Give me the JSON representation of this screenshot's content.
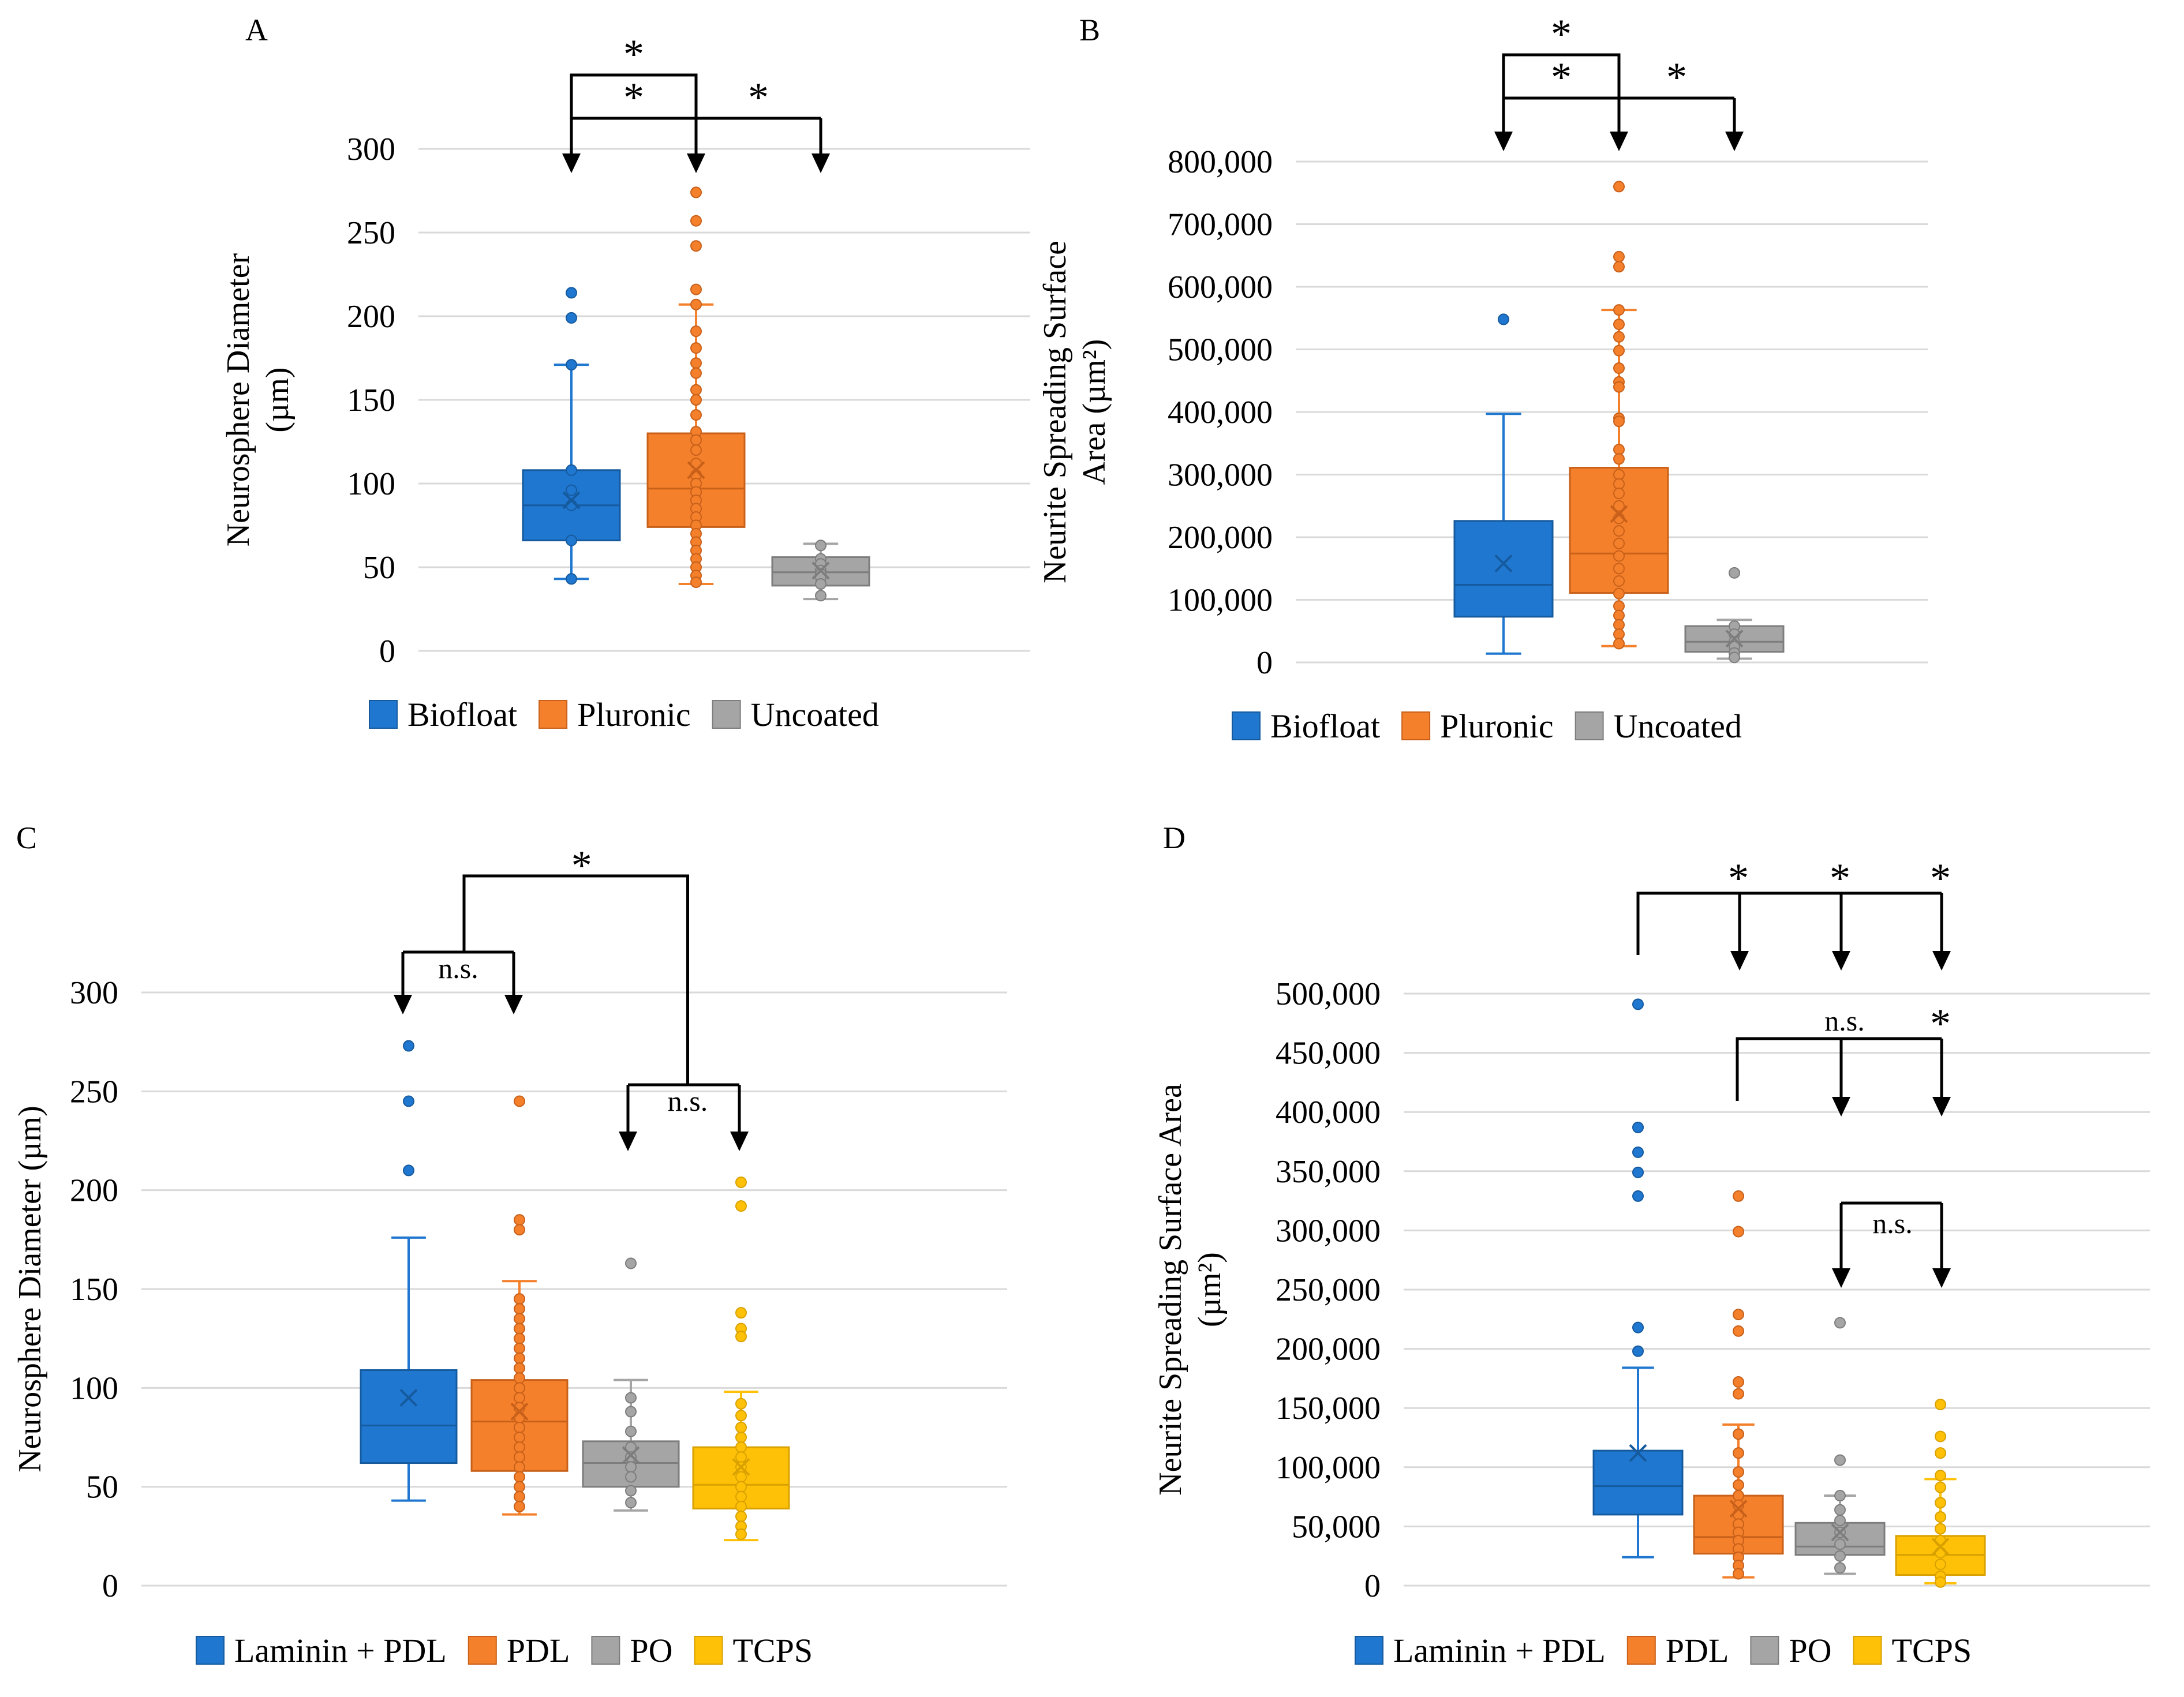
{
  "colors": {
    "blue": "#1f77d0",
    "blue_dark": "#165a9e",
    "orange": "#f4802b",
    "orange_dark": "#c8601a",
    "gray": "#a5a5a5",
    "gray_dark": "#7d7d7d",
    "yellow": "#fec107",
    "yellow_dark": "#d9a100",
    "grid": "#d9d9d9"
  },
  "chart_data": [
    {
      "id": "A",
      "panel_label": "A",
      "type": "box",
      "ylabel": [
        "Neurosphere Diameter",
        "(µm)"
      ],
      "ylim": [
        0,
        300
      ],
      "yticks": [
        0,
        50,
        100,
        150,
        200,
        250,
        300
      ],
      "ytick_labels": [
        "0",
        "50",
        "100",
        "150",
        "200",
        "250",
        "300"
      ],
      "series": [
        {
          "name": "Biofloat",
          "color": "blue",
          "whisker_low": 43,
          "q1": 66,
          "median": 87,
          "q3": 108,
          "whisker_high": 171,
          "mean": 90,
          "points": [
            214,
            199,
            171,
            108,
            96,
            87,
            66,
            43
          ]
        },
        {
          "name": "Pluronic",
          "color": "orange",
          "whisker_low": 40,
          "q1": 74,
          "median": 97,
          "q3": 130,
          "whisker_high": 207,
          "mean": 108,
          "points": [
            274,
            257,
            242,
            216,
            207,
            191,
            181,
            172,
            166,
            156,
            150,
            141,
            131,
            126,
            120,
            112,
            105,
            100,
            95,
            90,
            85,
            80,
            75,
            70,
            65,
            60,
            55,
            50,
            45,
            41
          ]
        },
        {
          "name": "Uncoated",
          "color": "gray",
          "whisker_low": 31,
          "q1": 39,
          "median": 47,
          "q3": 56,
          "whisker_high": 64,
          "mean": 48,
          "points": [
            63,
            55,
            52,
            48,
            46,
            44,
            40,
            33
          ]
        }
      ],
      "legend": [
        "Biofloat",
        "Pluronic",
        "Uncoated"
      ],
      "annotations": [
        {
          "from": 0,
          "to": 1,
          "label": "*",
          "level": 2,
          "kind": "ab"
        },
        {
          "from": 0,
          "to": 1,
          "label": "*",
          "level": 1,
          "kind": "ab"
        },
        {
          "from": 1,
          "to": 2,
          "label": "*",
          "level": 1,
          "kind": "ab"
        }
      ]
    },
    {
      "id": "B",
      "panel_label": "B",
      "type": "box",
      "ylabel": [
        "Neurite Spreading Surface",
        "Area (µm²)"
      ],
      "ylim": [
        0,
        800000
      ],
      "yticks": [
        0,
        100000,
        200000,
        300000,
        400000,
        500000,
        600000,
        700000,
        800000
      ],
      "ytick_labels": [
        "0",
        "100,000",
        "200,000",
        "300,000",
        "400,000",
        "500,000",
        "600,000",
        "700,000",
        "800,000"
      ],
      "series": [
        {
          "name": "Biofloat",
          "color": "blue",
          "whisker_low": 14000,
          "q1": 73000,
          "median": 124000,
          "q3": 226000,
          "whisker_high": 397000,
          "mean": 158000,
          "points": [
            548000
          ]
        },
        {
          "name": "Pluronic",
          "color": "orange",
          "whisker_low": 26000,
          "q1": 111000,
          "median": 174000,
          "q3": 311000,
          "whisker_high": 563000,
          "mean": 237000,
          "points": [
            760000,
            648000,
            632000,
            563000,
            540000,
            520000,
            498000,
            470000,
            448000,
            440000,
            390000,
            385000,
            340000,
            325000,
            300000,
            285000,
            270000,
            250000,
            230000,
            210000,
            190000,
            170000,
            150000,
            130000,
            110000,
            90000,
            75000,
            60000,
            45000,
            30000
          ]
        },
        {
          "name": "Uncoated",
          "color": "gray",
          "whisker_low": 6000,
          "q1": 17000,
          "median": 33000,
          "q3": 58000,
          "whisker_high": 68000,
          "mean": 38000,
          "points": [
            143000,
            58000,
            45000,
            33000,
            25000,
            15000,
            8000
          ]
        }
      ],
      "legend": [
        "Biofloat",
        "Pluronic",
        "Uncoated"
      ],
      "annotations": [
        {
          "from": 0,
          "to": 1,
          "label": "*",
          "level": 2,
          "kind": "ab"
        },
        {
          "from": 0,
          "to": 1,
          "label": "*",
          "level": 1,
          "kind": "ab"
        },
        {
          "from": 1,
          "to": 2,
          "label": "*",
          "level": 1,
          "kind": "ab"
        }
      ]
    },
    {
      "id": "C",
      "panel_label": "C",
      "type": "box",
      "ylabel": [
        "Neurosphere Diameter (µm)"
      ],
      "ylim": [
        0,
        300
      ],
      "yticks": [
        0,
        50,
        100,
        150,
        200,
        250,
        300
      ],
      "ytick_labels": [
        "0",
        "50",
        "100",
        "150",
        "200",
        "250",
        "300"
      ],
      "series": [
        {
          "name": "Laminin + PDL",
          "color": "blue",
          "whisker_low": 43,
          "q1": 62,
          "median": 81,
          "q3": 109,
          "whisker_high": 176,
          "mean": 95,
          "points": [
            273,
            245,
            210
          ]
        },
        {
          "name": "PDL",
          "color": "orange",
          "whisker_low": 36,
          "q1": 58,
          "median": 83,
          "q3": 104,
          "whisker_high": 154,
          "mean": 88,
          "points": [
            245,
            185,
            180,
            145,
            140,
            135,
            130,
            125,
            120,
            115,
            110,
            105,
            100,
            95,
            90,
            85,
            80,
            75,
            70,
            65,
            60,
            55,
            50,
            45,
            40
          ]
        },
        {
          "name": "PO",
          "color": "gray",
          "whisker_low": 38,
          "q1": 50,
          "median": 62,
          "q3": 73,
          "whisker_high": 104,
          "mean": 66,
          "points": [
            163,
            95,
            88,
            78,
            70,
            65,
            60,
            55,
            48,
            42
          ]
        },
        {
          "name": "TCPS",
          "color": "yellow",
          "whisker_low": 23,
          "q1": 39,
          "median": 51,
          "q3": 70,
          "whisker_high": 98,
          "mean": 60,
          "points": [
            204,
            192,
            138,
            130,
            126,
            92,
            86,
            80,
            75,
            70,
            65,
            60,
            55,
            50,
            45,
            40,
            35,
            30,
            26
          ]
        }
      ],
      "legend": [
        "Laminin + PDL",
        "PDL",
        "PO",
        "TCPS"
      ],
      "annotations": [
        {
          "label": "*",
          "kind": "outer"
        },
        {
          "from": 0,
          "to": 1,
          "label": "n.s.",
          "kind": "pair"
        },
        {
          "from": 2,
          "to": 3,
          "label": "n.s.",
          "kind": "pair"
        }
      ]
    },
    {
      "id": "D",
      "panel_label": "D",
      "type": "box",
      "ylabel": [
        "Neurite Spreading Surface Area",
        "(µm²)"
      ],
      "ylim": [
        0,
        500000
      ],
      "yticks": [
        0,
        50000,
        100000,
        150000,
        200000,
        250000,
        300000,
        350000,
        400000,
        450000,
        500000
      ],
      "ytick_labels": [
        "0",
        "50,000",
        "100,000",
        "150,000",
        "200,000",
        "250,000",
        "300,000",
        "350,000",
        "400,000",
        "450,000",
        "500,000"
      ],
      "series": [
        {
          "name": "Laminin + PDL",
          "color": "blue",
          "whisker_low": 24000,
          "q1": 60000,
          "median": 84000,
          "q3": 114000,
          "whisker_high": 184000,
          "mean": 112000,
          "points": [
            491000,
            387000,
            366000,
            349000,
            329000,
            218000,
            198000
          ]
        },
        {
          "name": "PDL",
          "color": "orange",
          "whisker_low": 7000,
          "q1": 27000,
          "median": 41000,
          "q3": 76000,
          "whisker_high": 136000,
          "mean": 65000,
          "points": [
            329000,
            299000,
            229000,
            215000,
            172000,
            162000,
            128000,
            112000,
            96000,
            85000,
            76000,
            68000,
            60000,
            52000,
            45000,
            38000,
            31000,
            24000,
            17000,
            10000
          ]
        },
        {
          "name": "PO",
          "color": "gray",
          "whisker_low": 10000,
          "q1": 26000,
          "median": 33000,
          "q3": 53000,
          "whisker_high": 76000,
          "mean": 45000,
          "points": [
            222000,
            106000,
            76000,
            64000,
            55000,
            45000,
            35000,
            25000,
            15000
          ]
        },
        {
          "name": "TCPS",
          "color": "yellow",
          "whisker_low": 2000,
          "q1": 9000,
          "median": 26000,
          "q3": 42000,
          "whisker_high": 90000,
          "mean": 33000,
          "points": [
            153000,
            126000,
            112000,
            93000,
            83000,
            70000,
            58000,
            48000,
            38000,
            28000,
            18000,
            8000,
            3000
          ]
        }
      ],
      "legend": [
        "Laminin + PDL",
        "PDL",
        "PO",
        "TCPS"
      ],
      "annotations": [
        {
          "from": 0,
          "targets": [
            1,
            2,
            3
          ],
          "labels": [
            "*",
            "*",
            "*"
          ],
          "kind": "fan",
          "level": 1
        },
        {
          "from": 1,
          "targets": [
            2,
            3
          ],
          "labels": [
            "n.s.",
            "*"
          ],
          "kind": "fan",
          "level": 2
        },
        {
          "from": 2,
          "targets": [
            3
          ],
          "labels": [
            "n.s."
          ],
          "kind": "fan",
          "level": 3
        }
      ]
    }
  ]
}
